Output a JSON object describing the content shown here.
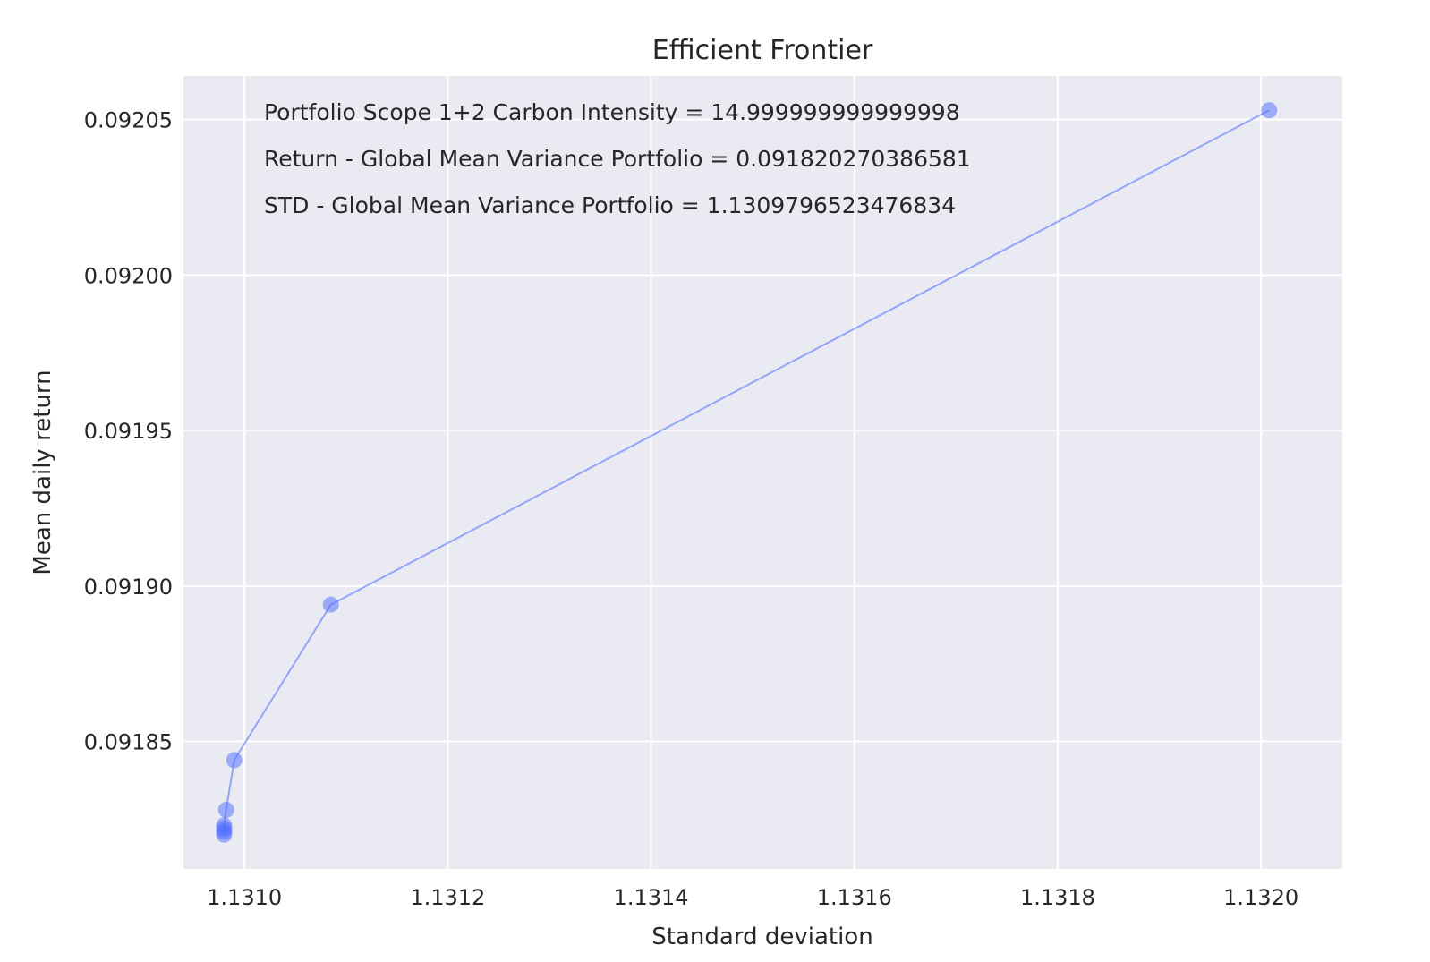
{
  "chart_data": {
    "type": "line",
    "title": "Efficient Frontier",
    "xlabel": "Standard deviation",
    "ylabel": "Mean daily return",
    "xlim": [
      1.13094,
      1.13208
    ],
    "ylim": [
      0.091809,
      0.092064
    ],
    "grid": true,
    "xticks": [
      1.131,
      1.1312,
      1.1314,
      1.1316,
      1.1318,
      1.132
    ],
    "xtick_labels": [
      "1.1310",
      "1.1312",
      "1.1314",
      "1.1316",
      "1.1318",
      "1.1320"
    ],
    "yticks": [
      0.09185,
      0.0919,
      0.09195,
      0.092,
      0.09205
    ],
    "ytick_labels": [
      "0.09185",
      "0.09190",
      "0.09195",
      "0.09200",
      "0.09205"
    ],
    "series": [
      {
        "color": "#4d6bff",
        "x": [
          1.13098,
          1.13098,
          1.13098,
          1.13098,
          1.130982,
          1.13099,
          1.131085,
          1.132008
        ],
        "y": [
          0.09182,
          0.091821,
          0.091822,
          0.091823,
          0.091828,
          0.091844,
          0.091894,
          0.092053
        ]
      }
    ],
    "annotations": [
      "Portfolio Scope 1+2 Carbon Intensity = 14.999999999999998",
      "Return - Global Mean Variance Portfolio = 0.091820270386581",
      "STD - Global Mean Variance Portfolio = 1.1309796523476834"
    ],
    "colors": {
      "background": "#eaeaf2",
      "grid": "#ffffff",
      "line": "#4d6bff",
      "highlight": "#0033ff"
    }
  }
}
